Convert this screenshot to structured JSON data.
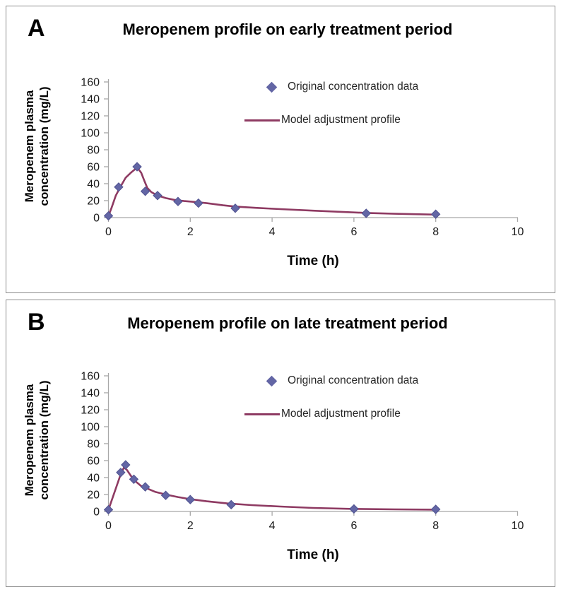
{
  "page": {
    "background": "#ffffff"
  },
  "colors": {
    "marker": "#6366a5",
    "marker_edge": "#4f5290",
    "line": "#8e3a62",
    "axis": "#a8a8a8",
    "tick_text": "#1a1a1a",
    "title_text": "#000000",
    "panel_border": "#8c8c8c"
  },
  "chart_data": [
    {
      "type": "line",
      "panel_label": "A",
      "title": "Meropenem profile on early treatment period",
      "xlabel": "Time (h)",
      "ylabel": "Meropenem plasma concentration (mg/L)",
      "ylabel_lines": [
        "Meropenem plasma",
        "concentration (mg/L)"
      ],
      "xlim": [
        0,
        10
      ],
      "ylim": [
        0,
        160
      ],
      "x_ticks": [
        0,
        2,
        4,
        6,
        8,
        10
      ],
      "y_ticks": [
        0,
        20,
        40,
        60,
        80,
        100,
        120,
        140,
        160
      ],
      "grid": false,
      "legend_position": "inside-upper-right",
      "series": [
        {
          "name": "Original concentration data",
          "mode": "markers",
          "marker": "diamond",
          "x": [
            0,
            0.25,
            0.7,
            0.9,
            1.2,
            1.7,
            2.2,
            3.1,
            6.3,
            8
          ],
          "y": [
            2,
            36,
            60,
            31,
            26,
            19,
            17,
            11,
            5,
            4
          ]
        },
        {
          "name": "Model adjustment profile",
          "mode": "line",
          "x": [
            0,
            0.08,
            0.18,
            0.3,
            0.42,
            0.55,
            0.65,
            0.72,
            0.8,
            0.88,
            0.95,
            1.05,
            1.2,
            1.4,
            1.6,
            1.85,
            2.1,
            2.4,
            2.8,
            3.1,
            3.6,
            4.2,
            5.0,
            5.8,
            6.3,
            7.0,
            8.0
          ],
          "y": [
            2,
            12,
            26,
            37,
            47,
            53,
            57,
            58,
            53,
            43,
            35,
            30,
            26,
            23,
            21,
            19.5,
            18.5,
            17,
            14.5,
            13,
            11.5,
            10,
            8.2,
            6.5,
            5.5,
            4.5,
            3.5
          ]
        }
      ]
    },
    {
      "type": "line",
      "panel_label": "B",
      "title": "Meropenem profile on late treatment period",
      "xlabel": "Time (h)",
      "ylabel": "Meropenem plasma concentration (mg/L)",
      "ylabel_lines": [
        "Meropenem plasma",
        "concentration (mg/L)"
      ],
      "xlim": [
        0,
        10
      ],
      "ylim": [
        0,
        160
      ],
      "x_ticks": [
        0,
        2,
        4,
        6,
        8,
        10
      ],
      "y_ticks": [
        0,
        20,
        40,
        60,
        80,
        100,
        120,
        140,
        160
      ],
      "grid": false,
      "legend_position": "inside-upper-right",
      "series": [
        {
          "name": "Original concentration data",
          "mode": "markers",
          "marker": "diamond",
          "x": [
            0,
            0.3,
            0.42,
            0.62,
            0.9,
            1.4,
            2.0,
            3.0,
            6.0,
            8.0
          ],
          "y": [
            2,
            46,
            55,
            38,
            29,
            19,
            14,
            8,
            3,
            2.5
          ]
        },
        {
          "name": "Model adjustment profile",
          "mode": "line",
          "x": [
            0,
            0.1,
            0.2,
            0.3,
            0.38,
            0.45,
            0.55,
            0.65,
            0.8,
            0.95,
            1.15,
            1.4,
            1.7,
            2.0,
            2.4,
            2.9,
            3.5,
            4.2,
            5.0,
            6.0,
            7.0,
            8.0
          ],
          "y": [
            2,
            16,
            30,
            44,
            52,
            49,
            42,
            36,
            30,
            27,
            23,
            20,
            17,
            14.5,
            12,
            9.5,
            7.5,
            5.8,
            4.2,
            3.0,
            2.5,
            2.2
          ]
        }
      ]
    }
  ]
}
